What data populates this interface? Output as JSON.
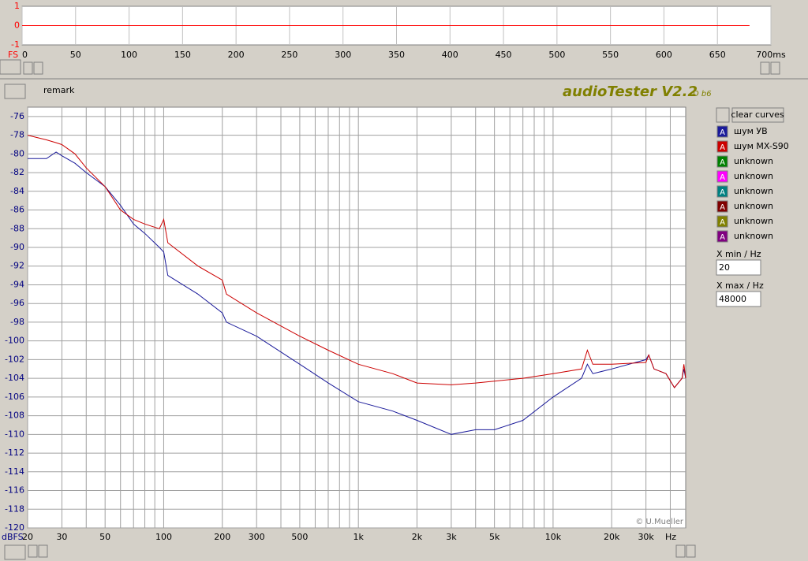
{
  "toolbar": {
    "remark": "remark",
    "app_title": "audioTester V2.2",
    "app_version": "D b6"
  },
  "sidebar": {
    "clear_button": "clear curves",
    "curve_icon": "A",
    "unknown_curves": [
      {
        "label": "unknown",
        "color": "#008000"
      },
      {
        "label": "unknown",
        "color": "#ff00ff"
      },
      {
        "label": "unknown",
        "color": "#008080"
      },
      {
        "label": "unknown",
        "color": "#800000"
      },
      {
        "label": "unknown",
        "color": "#808000"
      },
      {
        "label": "unknown",
        "color": "#800080"
      }
    ],
    "xmin_label": "X min / Hz",
    "xmin_value": "20",
    "xmax_label": "X max / Hz",
    "xmax_value": "48000"
  },
  "waveform": {
    "type": "line",
    "y_label": "FS",
    "xlim": [
      0,
      700
    ],
    "xticks": [
      0,
      50,
      100,
      150,
      200,
      250,
      300,
      350,
      400,
      450,
      500,
      550,
      600,
      650,
      {
        "value": 700,
        "label": "700ms"
      }
    ],
    "ylim": [
      -1,
      1
    ],
    "yticks": [
      -1,
      0,
      1
    ],
    "x": [
      0,
      680
    ],
    "values": [
      0,
      0
    ],
    "color": "#ff0000",
    "grid": true
  },
  "chart_data": {
    "type": "line",
    "xscale": "log",
    "xlim": [
      20,
      48000
    ],
    "ylim": [
      -120,
      -75
    ],
    "yticks": [
      -120,
      -118,
      -116,
      -114,
      -112,
      -110,
      -108,
      -106,
      -104,
      -102,
      -100,
      -98,
      -96,
      -94,
      -92,
      -90,
      -88,
      -86,
      -84,
      -82,
      -80,
      -78,
      -76
    ],
    "xticks": [
      20,
      30,
      50,
      100,
      200,
      300,
      500,
      {
        "value": 1000,
        "label": "1k"
      },
      {
        "value": 2000,
        "label": "2k"
      },
      {
        "value": 3000,
        "label": "3k"
      },
      {
        "value": 5000,
        "label": "5k"
      },
      {
        "value": 10000,
        "label": "10k"
      },
      {
        "value": 20000,
        "label": "20k"
      },
      {
        "value": 30000,
        "label": "30k"
      }
    ],
    "xgrid": [
      20,
      30,
      40,
      50,
      60,
      70,
      80,
      90,
      100,
      200,
      300,
      400,
      500,
      600,
      700,
      800,
      900,
      1000,
      2000,
      3000,
      4000,
      5000,
      6000,
      7000,
      8000,
      9000,
      10000,
      20000,
      30000,
      40000
    ],
    "grid": true,
    "x_label": "Hz",
    "y_label": "dBFS",
    "annotation": "© U.Mueller",
    "x": [
      20,
      25,
      28,
      30,
      35,
      40,
      50,
      60,
      70,
      80,
      95,
      100,
      105,
      150,
      200,
      210,
      300,
      500,
      700,
      1000,
      1500,
      2000,
      3000,
      4000,
      5000,
      7000,
      10000,
      14000,
      15000,
      16000,
      20000,
      30000,
      31000,
      33000,
      38000,
      42000,
      46000,
      47000,
      48000
    ],
    "series": [
      {
        "name": "шум УВ",
        "color": "#1a1a9a",
        "values": [
          -80.5,
          -80.5,
          -79.8,
          -80.2,
          -81,
          -82,
          -83.5,
          -85.5,
          -87.5,
          -88.5,
          -90,
          -90.5,
          -93,
          -95,
          -97,
          -98,
          -99.5,
          -102.5,
          -104.5,
          -106.5,
          -107.5,
          -108.5,
          -110,
          -109.5,
          -109.5,
          -108.5,
          -106,
          -104,
          -102.5,
          -103.5,
          -103,
          -102,
          -101.5,
          -103,
          -103.5,
          -105,
          -104,
          -103,
          -104
        ]
      },
      {
        "name": "шум MX-S90",
        "color": "#cc0000",
        "values": [
          -78,
          -78.5,
          -78.8,
          -79,
          -80,
          -81.5,
          -83.5,
          -86,
          -87,
          -87.5,
          -88,
          -87,
          -89.5,
          -92,
          -93.5,
          -95,
          -97,
          -99.5,
          -101,
          -102.5,
          -103.5,
          -104.5,
          -104.7,
          -104.5,
          -104.3,
          -104,
          -103.5,
          -103,
          -101,
          -102.5,
          -102.5,
          -102.3,
          -101.5,
          -103,
          -103.5,
          -105,
          -104,
          -102.5,
          -104
        ]
      }
    ]
  }
}
